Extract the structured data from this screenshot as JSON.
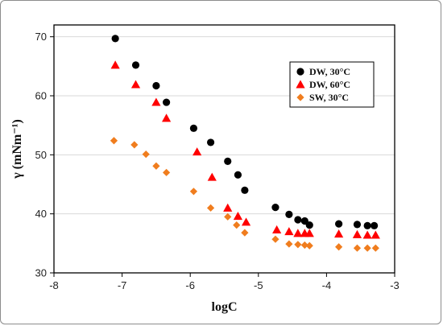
{
  "chart_data": {
    "type": "scatter",
    "xlabel": "logC",
    "ylabel": "γ (mNm⁻¹)",
    "xlim": [
      -8,
      -3
    ],
    "ylim": [
      30,
      72
    ],
    "x_ticks": [
      -8,
      -7,
      -6,
      -5,
      -4,
      -3
    ],
    "y_ticks": [
      30,
      40,
      50,
      60,
      70
    ],
    "grid": "horizontal",
    "legend_position": "top-right",
    "series": [
      {
        "name": "DW,  30°C",
        "marker": "circle",
        "color": "#000000",
        "points": [
          [
            -7.1,
            69.7
          ],
          [
            -6.8,
            65.2
          ],
          [
            -6.5,
            61.7
          ],
          [
            -6.35,
            58.9
          ],
          [
            -5.95,
            54.5
          ],
          [
            -5.7,
            52.1
          ],
          [
            -5.45,
            48.9
          ],
          [
            -5.3,
            46.6
          ],
          [
            -5.2,
            44.0
          ],
          [
            -4.75,
            41.1
          ],
          [
            -4.55,
            39.9
          ],
          [
            -4.42,
            39.0
          ],
          [
            -4.32,
            38.8
          ],
          [
            -4.25,
            38.1
          ],
          [
            -3.82,
            38.3
          ],
          [
            -3.55,
            38.2
          ],
          [
            -3.4,
            38.0
          ],
          [
            -3.3,
            38.0
          ]
        ]
      },
      {
        "name": "DW,  60°C",
        "marker": "triangle",
        "color": "#ff0000",
        "points": [
          [
            -7.1,
            65.2
          ],
          [
            -6.8,
            61.9
          ],
          [
            -6.5,
            58.9
          ],
          [
            -6.35,
            56.2
          ],
          [
            -5.9,
            50.5
          ],
          [
            -5.68,
            46.2
          ],
          [
            -5.45,
            41.0
          ],
          [
            -5.3,
            39.6
          ],
          [
            -5.18,
            38.6
          ],
          [
            -4.73,
            37.3
          ],
          [
            -4.55,
            37.0
          ],
          [
            -4.42,
            36.7
          ],
          [
            -4.32,
            36.7
          ],
          [
            -4.25,
            36.7
          ],
          [
            -3.82,
            36.6
          ],
          [
            -3.55,
            36.5
          ],
          [
            -3.4,
            36.4
          ],
          [
            -3.28,
            36.4
          ]
        ]
      },
      {
        "name": "SW,  30°C",
        "marker": "diamond",
        "color": "#f07d1e",
        "points": [
          [
            -7.12,
            52.4
          ],
          [
            -6.82,
            51.7
          ],
          [
            -6.65,
            50.1
          ],
          [
            -6.5,
            48.1
          ],
          [
            -6.35,
            47.0
          ],
          [
            -5.95,
            43.8
          ],
          [
            -5.7,
            41.0
          ],
          [
            -5.45,
            39.5
          ],
          [
            -5.32,
            38.1
          ],
          [
            -5.2,
            36.8
          ],
          [
            -4.75,
            35.7
          ],
          [
            -4.55,
            34.9
          ],
          [
            -4.42,
            34.8
          ],
          [
            -4.32,
            34.7
          ],
          [
            -4.25,
            34.6
          ],
          [
            -3.82,
            34.4
          ],
          [
            -3.55,
            34.2
          ],
          [
            -3.4,
            34.2
          ],
          [
            -3.28,
            34.2
          ]
        ]
      }
    ]
  }
}
